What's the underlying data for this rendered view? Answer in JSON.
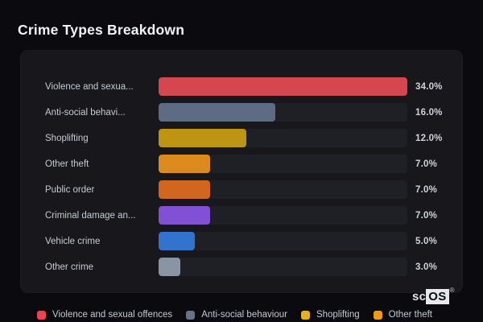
{
  "title": "Crime Types Breakdown",
  "colors": {
    "page_background": "#0b0b0f",
    "panel_background": "#17171c",
    "bar_track": "#1f1f26",
    "title_text": "#f2f3f5",
    "label_text": "#c7cbd3",
    "value_text": "#ced3da"
  },
  "chart": {
    "rows": [
      {
        "label": "Violence and sexua...",
        "value": 34.0,
        "value_label": "34.0%",
        "color": "#d5464f"
      },
      {
        "label": "Anti-social behavi...",
        "value": 16.0,
        "value_label": "16.0%",
        "color": "#5d6c84"
      },
      {
        "label": "Shoplifting",
        "value": 12.0,
        "value_label": "12.0%",
        "color": "#bd9513"
      },
      {
        "label": "Other theft",
        "value": 7.0,
        "value_label": "7.0%",
        "color": "#dd8a1c"
      },
      {
        "label": "Public order",
        "value": 7.0,
        "value_label": "7.0%",
        "color": "#d2661e"
      },
      {
        "label": "Criminal damage an...",
        "value": 7.0,
        "value_label": "7.0%",
        "color": "#8150d5"
      },
      {
        "label": "Vehicle crime",
        "value": 5.0,
        "value_label": "5.0%",
        "color": "#3273d0"
      },
      {
        "label": "Other crime",
        "value": 3.0,
        "value_label": "3.0%",
        "color": "#8995a4"
      }
    ]
  },
  "chart_data": {
    "type": "bar",
    "orientation": "horizontal",
    "title": "Crime Types Breakdown",
    "categories": [
      "Violence and sexual offences",
      "Anti-social behaviour",
      "Shoplifting",
      "Other theft",
      "Public order",
      "Criminal damage an...",
      "Vehicle crime",
      "Other crime"
    ],
    "values": [
      34.0,
      16.0,
      12.0,
      7.0,
      7.0,
      7.0,
      5.0,
      3.0
    ],
    "value_labels": [
      "34.0%",
      "16.0%",
      "12.0%",
      "7.0%",
      "7.0%",
      "7.0%",
      "5.0%",
      "3.0%"
    ],
    "bar_colors": [
      "#d5464f",
      "#5d6c84",
      "#bd9513",
      "#dd8a1c",
      "#d2661e",
      "#8150d5",
      "#3273d0",
      "#8995a4"
    ],
    "xlim": [
      0,
      34
    ],
    "grid": false,
    "xlabel": "",
    "ylabel": "",
    "legend_position": "bottom",
    "legend_entries": [
      "Violence and sexual offences",
      "Anti-social behaviour",
      "Shoplifting",
      "Other theft"
    ]
  },
  "legend": {
    "items": [
      {
        "label": "Violence and sexual offences",
        "color": "#ea4450"
      },
      {
        "label": "Anti-social behaviour",
        "color": "#64748b"
      },
      {
        "label": "Shoplifting",
        "color": "#e6b01e"
      },
      {
        "label": "Other theft",
        "color": "#f09a18"
      }
    ]
  },
  "logo": {
    "prefix": "sc",
    "suffix": "OS",
    "registered": "®"
  }
}
